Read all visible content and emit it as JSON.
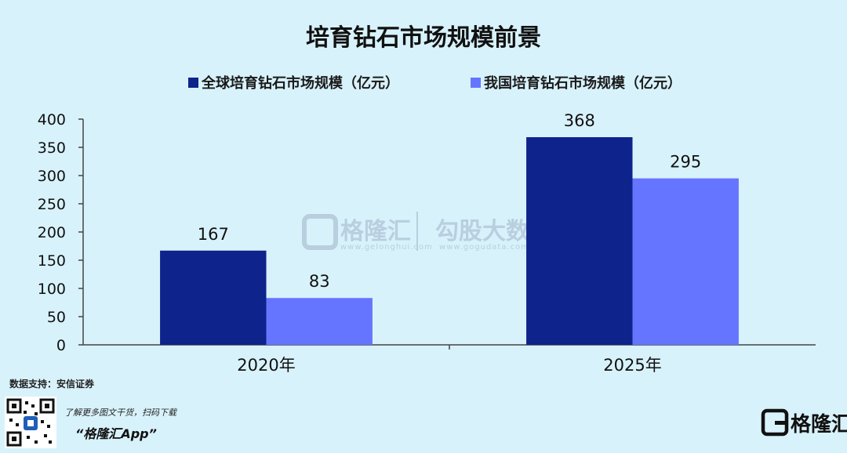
{
  "chart_data": {
    "type": "bar",
    "title": "培育钻石市场规模前景",
    "categories": [
      "2020年",
      "2025年"
    ],
    "series": [
      {
        "name": "全球培育钻石市场规模（亿元）",
        "values": [
          167,
          368
        ],
        "color": "#0e238c"
      },
      {
        "name": "我国培育钻石市场规模（亿元）",
        "values": [
          83,
          295
        ],
        "color": "#6675ff"
      }
    ],
    "ylim": [
      0,
      400
    ],
    "yticks": [
      0,
      50,
      100,
      150,
      200,
      250,
      300,
      350,
      400
    ],
    "xlabel": "",
    "ylabel": "",
    "grid": false,
    "legend_position": "top"
  },
  "watermark": {
    "brand": "格隆汇",
    "brand_url": "www.gelonghui.com",
    "partner": "勾股大数据",
    "partner_url": "www.gogudata.com"
  },
  "footer": {
    "source": "数据支持：安信证券",
    "note": "了解更多图文干货，扫码下载",
    "app": "“格隆汇App”",
    "brand": "格隆汇"
  },
  "icons": {
    "qr": "qr-code-icon",
    "logo": "gelonghui-logo-icon"
  }
}
